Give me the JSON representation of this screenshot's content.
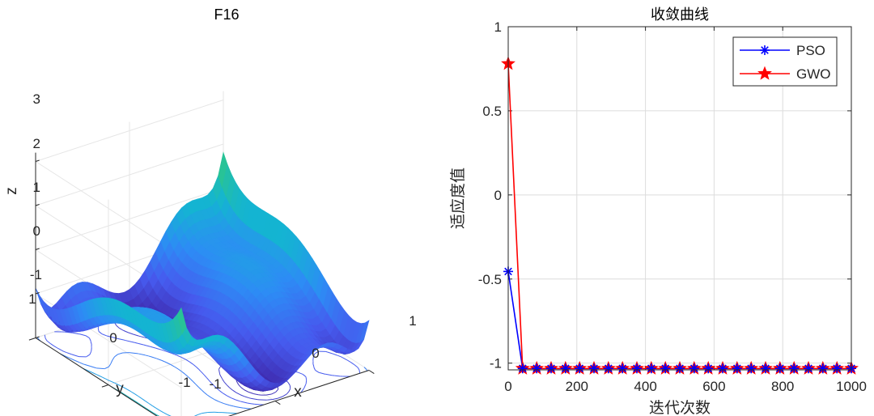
{
  "chart_data": [
    {
      "type": "surface3d",
      "title": "F16",
      "xlabel": "x",
      "ylabel": "y",
      "zlabel": "z",
      "x_range": [
        -1,
        1
      ],
      "y_range": [
        -1,
        1
      ],
      "z_range": [
        -1,
        3.2
      ],
      "x_ticks": [
        "-1",
        "0",
        "1"
      ],
      "y_ticks": [
        "-1",
        "0",
        "1"
      ],
      "z_ticks": [
        "-1",
        "0",
        "1",
        "2",
        "3"
      ],
      "colormap": "parula",
      "contour_levels": [
        -0.9,
        -0.7,
        -0.4,
        0,
        0.5,
        1.0,
        1.5
      ]
    },
    {
      "type": "line",
      "title": "收敛曲线",
      "xlabel": "迭代次数",
      "ylabel": "适应度值",
      "xlim": [
        0,
        1000
      ],
      "ylim": [
        -1.04,
        1
      ],
      "x_ticks": [
        "0",
        "200",
        "400",
        "600",
        "800",
        "1000"
      ],
      "y_ticks": [
        "-1",
        "-0.5",
        "0",
        "0.5",
        "1"
      ],
      "y_tick_values": [
        -1,
        -0.5,
        0,
        0.5,
        1
      ],
      "x_tick_values": [
        0,
        200,
        400,
        600,
        800,
        1000
      ],
      "grid": true,
      "legend_position": "top-right",
      "marker_x": [
        0,
        42,
        83,
        125,
        167,
        208,
        250,
        292,
        333,
        375,
        417,
        458,
        500,
        542,
        583,
        625,
        667,
        708,
        750,
        792,
        833,
        875,
        917,
        958,
        1000
      ],
      "series": [
        {
          "name": "PSO",
          "color": "#0000ff",
          "marker": "asterisk",
          "values": [
            -0.455,
            -1.0316,
            -1.0316,
            -1.0316,
            -1.0316,
            -1.0316,
            -1.0316,
            -1.0316,
            -1.0316,
            -1.0316,
            -1.0316,
            -1.0316,
            -1.0316,
            -1.0316,
            -1.0316,
            -1.0316,
            -1.0316,
            -1.0316,
            -1.0316,
            -1.0316,
            -1.0316,
            -1.0316,
            -1.0316,
            -1.0316,
            -1.0316
          ]
        },
        {
          "name": "GWO",
          "color": "#ff0000",
          "marker": "pentagram",
          "values": [
            0.78,
            -1.0316,
            -1.0316,
            -1.0316,
            -1.0316,
            -1.0316,
            -1.0316,
            -1.0316,
            -1.0316,
            -1.0316,
            -1.0316,
            -1.0316,
            -1.0316,
            -1.0316,
            -1.0316,
            -1.0316,
            -1.0316,
            -1.0316,
            -1.0316,
            -1.0316,
            -1.0316,
            -1.0316,
            -1.0316,
            -1.0316,
            -1.0316
          ]
        }
      ]
    }
  ]
}
